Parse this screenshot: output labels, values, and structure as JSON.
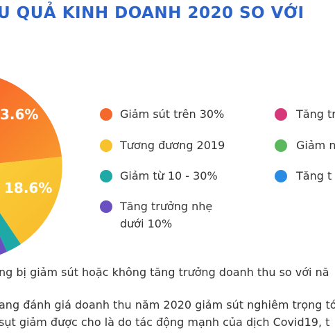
{
  "header": {
    "title": "U QUẢ KINH DOANH 2020 SO VỚI"
  },
  "pie": {
    "labels": [
      "3.6%",
      "18.6%"
    ]
  },
  "legend": {
    "left": [
      "Giảm sút trên 30%",
      "Tương đương 2019",
      "Giảm từ 10 - 30%",
      "Tăng trưởng nhẹ dưới 10%"
    ],
    "right": [
      "Tăng tr",
      "Giảm n",
      "Tăng t"
    ]
  },
  "body": {
    "lines": [
      "ng bị giảm sút hoặc không tăng trưởng doanh thu so với nă",
      "ang đánh giá doanh thu năm 2020 giảm sút nghiêm trọng tớ",
      "sụt giảm được cho là do tác động mạnh của dịch Covid19, t"
    ]
  }
}
